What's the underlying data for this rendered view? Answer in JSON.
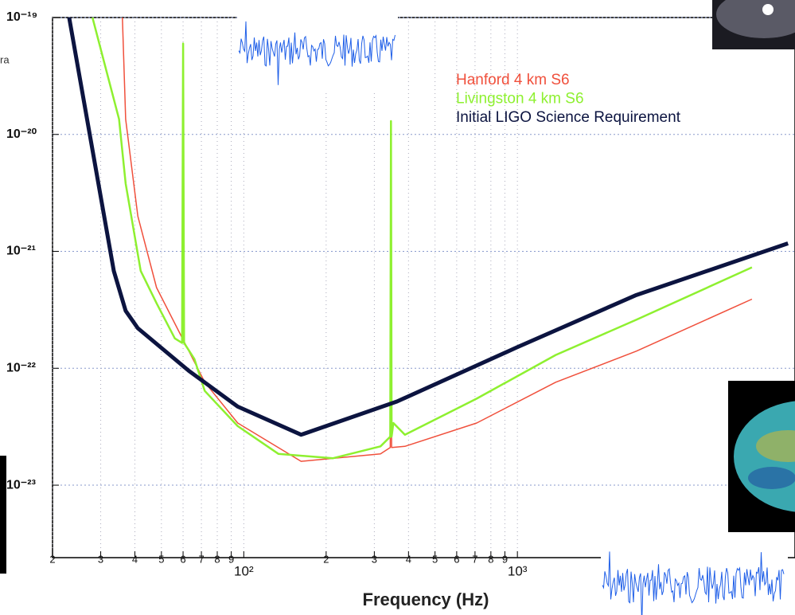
{
  "fragment_text": "ra",
  "chart_data": {
    "type": "line",
    "x_label": "Frequency (Hz)",
    "log_x": true,
    "log_y": true,
    "grid": true,
    "xlim": [
      20,
      10000
    ],
    "ylim": [
      2.4e-24,
      1e-19
    ],
    "xticks": [
      {
        "value": 20,
        "label": "2"
      },
      {
        "value": 30,
        "label": "3"
      },
      {
        "value": 40,
        "label": "4"
      },
      {
        "value": 50,
        "label": "5"
      },
      {
        "value": 60,
        "label": "6"
      },
      {
        "value": 70,
        "label": "7"
      },
      {
        "value": 80,
        "label": "8"
      },
      {
        "value": 90,
        "label": "9"
      },
      {
        "value": 100,
        "label": "10²"
      },
      {
        "value": 200,
        "label": "2"
      },
      {
        "value": 300,
        "label": "3"
      },
      {
        "value": 400,
        "label": "4"
      },
      {
        "value": 500,
        "label": "5"
      },
      {
        "value": 600,
        "label": "6"
      },
      {
        "value": 700,
        "label": "7"
      },
      {
        "value": 800,
        "label": "8"
      },
      {
        "value": 900,
        "label": "9"
      },
      {
        "value": 1000,
        "label": "10³"
      }
    ],
    "yticks": [
      {
        "value": 1e-19,
        "label": "10⁻¹⁹"
      },
      {
        "value": 1e-20,
        "label": "10⁻²⁰"
      },
      {
        "value": 1e-21,
        "label": "10⁻²¹"
      },
      {
        "value": 1e-22,
        "label": "10⁻²²"
      },
      {
        "value": 1e-23,
        "label": "10⁻²³"
      }
    ],
    "series": [
      {
        "name": "Hanford 4 km S6",
        "color": "#f0503c",
        "width": 1.5,
        "x": [
          36,
          37,
          41,
          48,
          59,
          72,
          95,
          162,
          316,
          343,
          345,
          347,
          388,
          710,
          1380,
          2720,
          7200
        ],
        "values": [
          1e-19,
          1.35e-20,
          2e-21,
          4.9e-22,
          1.9e-22,
          7.6e-23,
          3.4e-23,
          1.6e-23,
          1.85e-23,
          2.1e-23,
          1.2e-20,
          2.1e-23,
          2.15e-23,
          3.4e-23,
          7.6e-23,
          1.4e-22,
          3.9e-22
        ]
      },
      {
        "name": "Livingston 4 km S6",
        "color": "#8ef030",
        "width": 2.5,
        "x": [
          28,
          35,
          37,
          42,
          48,
          56,
          59.5,
          60,
          60.5,
          66,
          72,
          95,
          134,
          212,
          316,
          343,
          345,
          347,
          352,
          388,
          710,
          1380,
          2720,
          7200
        ],
        "values": [
          1e-19,
          1.35e-20,
          3.8e-21,
          6.8e-22,
          3.6e-22,
          1.8e-22,
          1.65e-22,
          6e-20,
          1.65e-22,
          1.2e-22,
          6.4e-23,
          3.2e-23,
          1.85e-23,
          1.7e-23,
          2.15e-23,
          2.6e-23,
          1.3e-20,
          2.6e-23,
          3.4e-23,
          2.7e-23,
          5.5e-23,
          1.3e-22,
          2.6e-22,
          7.3e-22
        ]
      },
      {
        "name": "Initial LIGO Science Requirement",
        "color": "#0c1440",
        "width": 5,
        "x": [
          23,
          33.5,
          37,
          41,
          63,
          95,
          162,
          363,
          990,
          2700,
          9750
        ],
        "values": [
          1e-19,
          6.8e-22,
          3.1e-22,
          2.2e-22,
          9.5e-23,
          4.7e-23,
          2.7e-23,
          5.2e-23,
          1.5e-22,
          4.2e-22,
          1.17e-21
        ]
      }
    ]
  }
}
